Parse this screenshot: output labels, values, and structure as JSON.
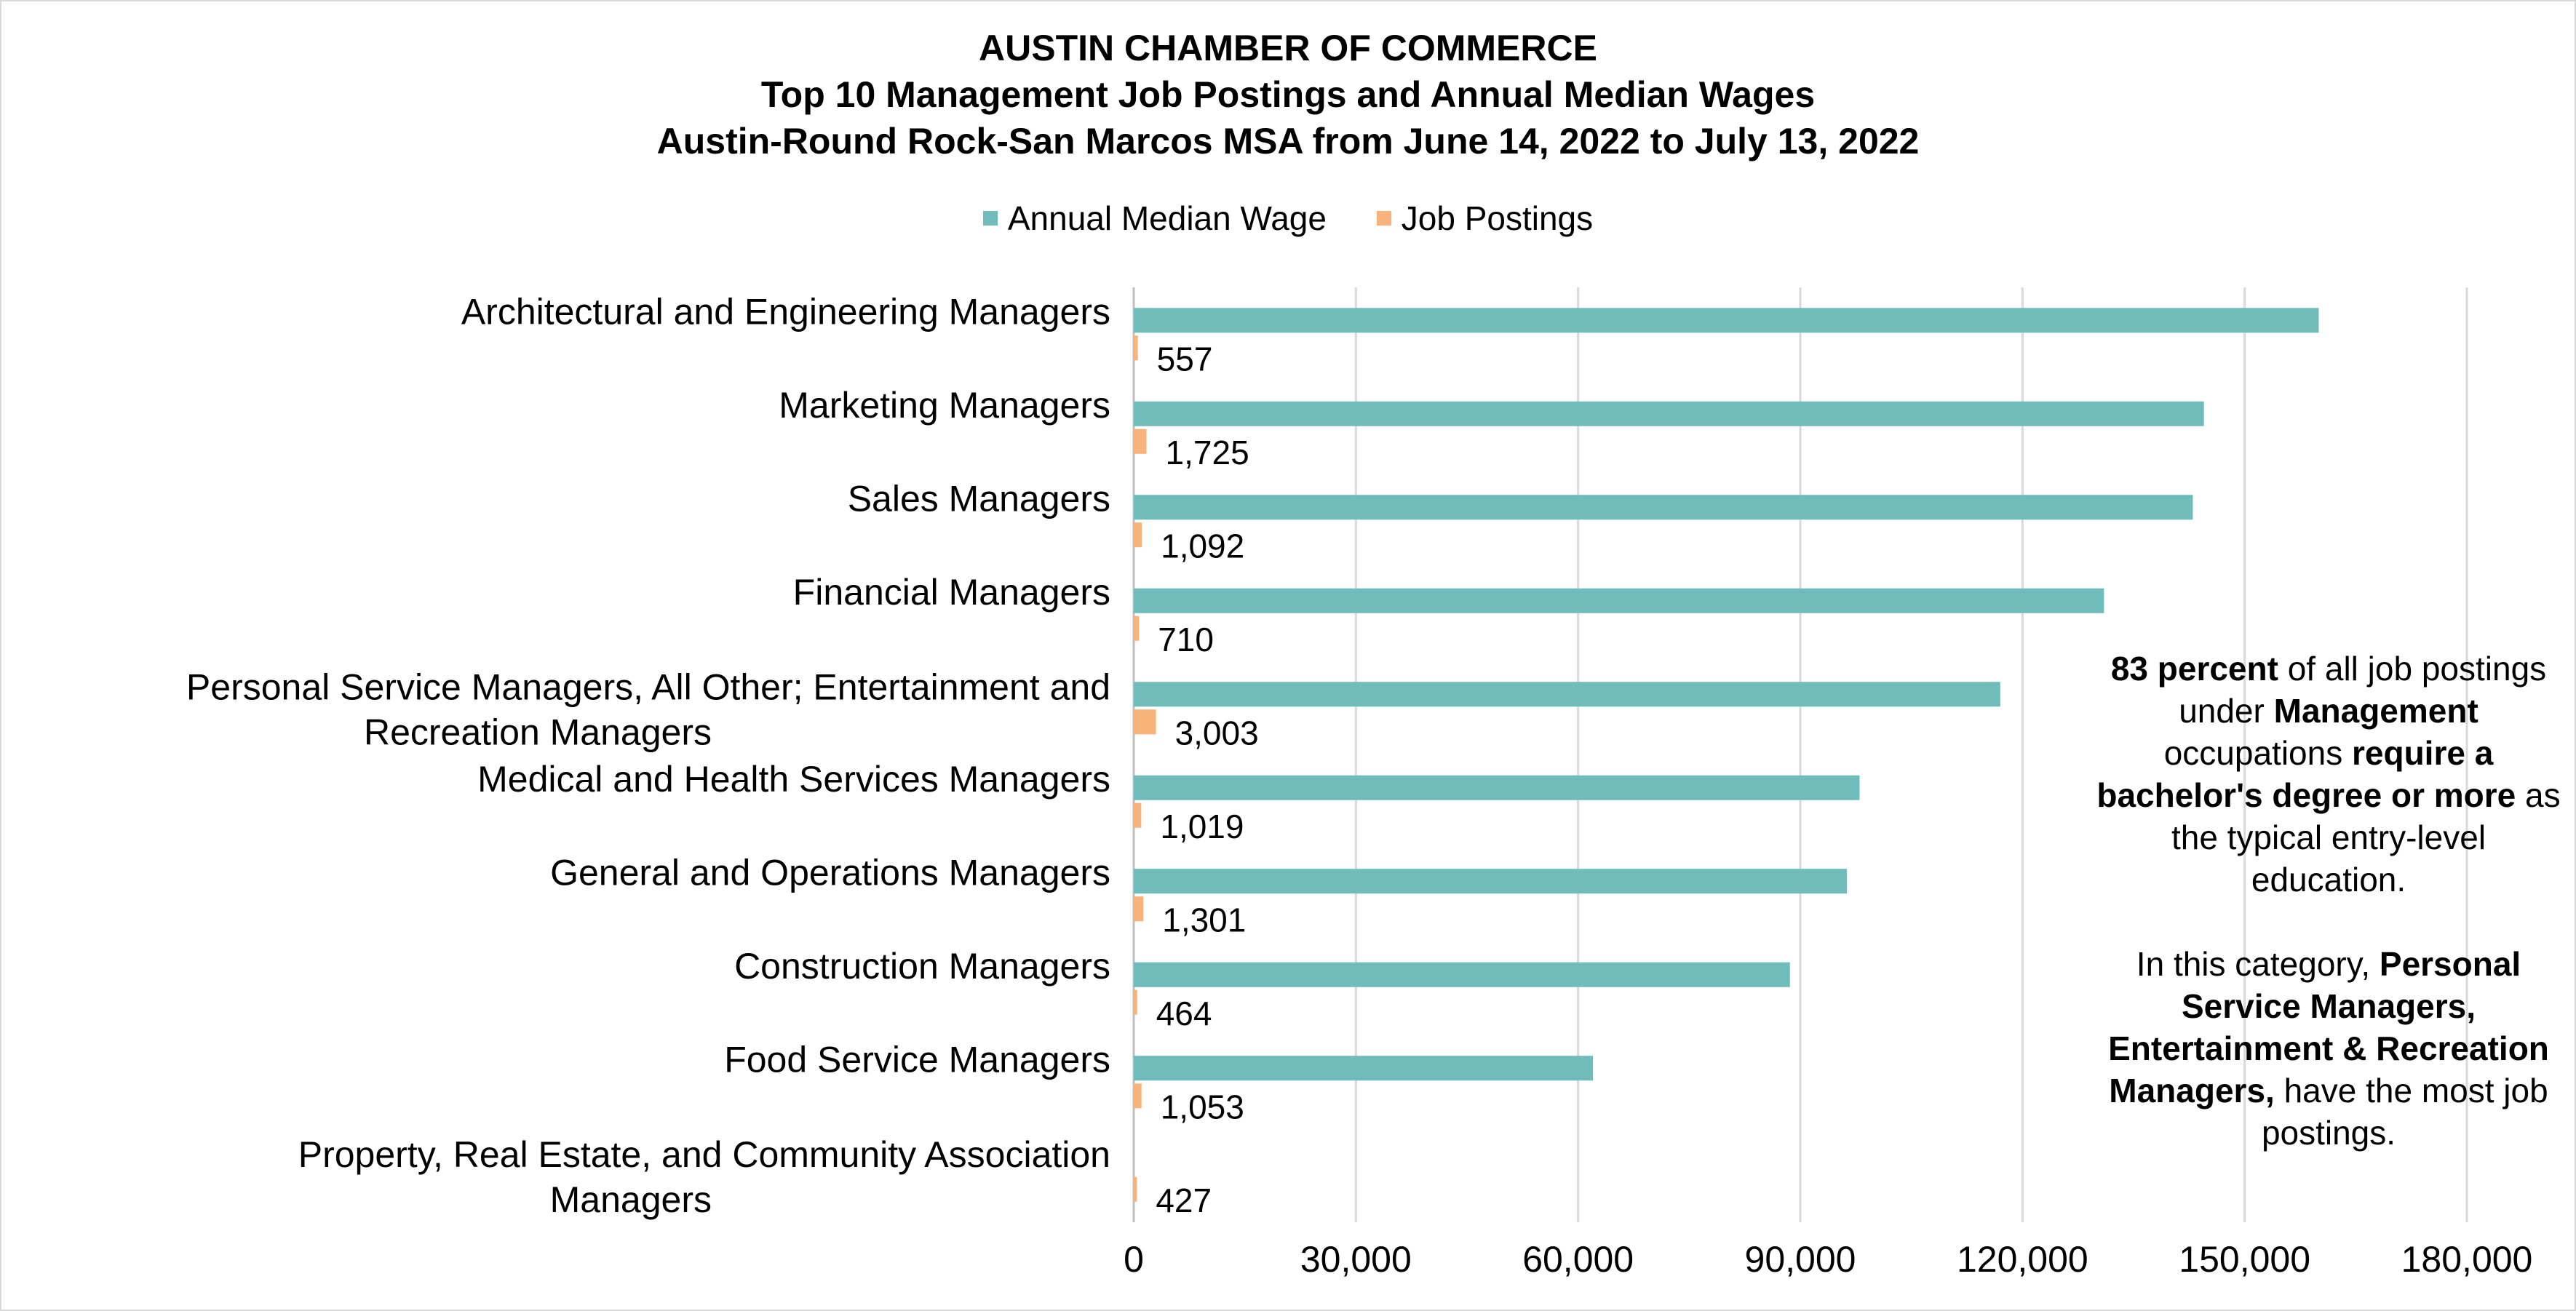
{
  "title": {
    "line1": "AUSTIN CHAMBER OF COMMERCE",
    "line2": "Top 10 Management Job Postings and Annual Median Wages",
    "line3": "Austin-Round Rock-San Marcos MSA from June 14, 2022 to July 13, 2022"
  },
  "legend": {
    "wage": "Annual Median Wage",
    "postings": "Job Postings"
  },
  "colors": {
    "wage": "#6fbcbb",
    "postings": "#f7b37a",
    "grid": "#d9d9d9",
    "axis": "#bfbfbf"
  },
  "chart_data": {
    "type": "bar",
    "orientation": "horizontal",
    "categories": [
      "Architectural and Engineering Managers",
      "Marketing Managers",
      "Sales Managers",
      "Financial Managers",
      "Personal Service Managers, All Other; Entertainment and Recreation Managers",
      "Medical and Health Services Managers",
      "General and Operations Managers",
      "Construction Managers",
      "Food Service Managers",
      "Property, Real Estate, and Community Association Managers"
    ],
    "series": [
      {
        "name": "Annual Median Wage",
        "values": [
          160000,
          144500,
          143000,
          131000,
          117000,
          98000,
          96300,
          88600,
          62000,
          0
        ]
      },
      {
        "name": "Job Postings",
        "values": [
          557,
          1725,
          1092,
          710,
          3003,
          1019,
          1301,
          464,
          1053,
          427
        ],
        "labels": [
          "557",
          "1,725",
          "1,092",
          "710",
          "3,003",
          "1,019",
          "1,301",
          "464",
          "1,053",
          "427"
        ]
      }
    ],
    "xlim": [
      0,
      180000
    ],
    "xticks": [
      0,
      30000,
      60000,
      90000,
      120000,
      150000,
      180000
    ],
    "xtick_labels": [
      "0",
      "30,000",
      "60,000",
      "90,000",
      "120,000",
      "150,000",
      "180,000"
    ],
    "grid": true,
    "legend_position": "top"
  },
  "note": {
    "p1_b1": "83 percent",
    "p1_t1": " of all job postings under ",
    "p1_b2": "Management",
    "p1_t2": " occupations ",
    "p1_b3": "require a bachelor's degree or more",
    "p1_t3": " as the typical entry-level education.",
    "p2_t1": "In this category, ",
    "p2_b1": "Personal Service Managers, Entertainment & Recreation Managers,",
    "p2_t2": " have the most job postings."
  }
}
